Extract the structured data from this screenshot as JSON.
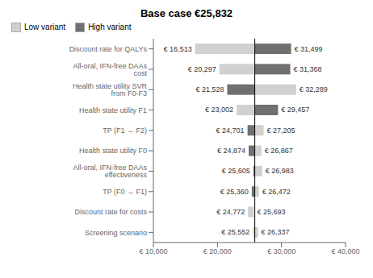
{
  "chart_data": {
    "type": "tornado",
    "title": "Base case €25,832",
    "orientation": "horizontal",
    "categories": [
      "Discount rate for QALYs",
      "All-oral, IFN-free DAAs cost",
      "Health state utility SVR from F0-F3",
      "Health state utility F1",
      "TP (F1 → F2)",
      "Health state utility F0",
      "All-oral, IFN-free DAAs effectiveness",
      "TP (F0 → F1)",
      "Discount rate for costs",
      "Screening scenario"
    ],
    "base_case": 25832,
    "low_values": [
      16513,
      20297,
      21528,
      23002,
      24701,
      24874,
      25605,
      25360,
      24772,
      25552
    ],
    "low_value_labels": [
      "€ 16,513",
      "€ 20,297",
      "€ 21,528",
      "€ 23,002",
      "€ 24,701",
      "€ 24,874",
      "€ 25,605",
      "€ 25,360",
      "€ 24,772",
      "€ 25,552"
    ],
    "high_values": [
      31499,
      31368,
      32289,
      29457,
      27205,
      26867,
      26983,
      26472,
      25693,
      26337
    ],
    "high_value_labels": [
      "€ 31,499",
      "€ 31,368",
      "€ 32,289",
      "€ 29,457",
      "€ 27,205",
      "€ 26,867",
      "€ 26,983",
      "€ 26,472",
      "€ 25,693",
      "€ 26,337"
    ],
    "left_colors": [
      "#d0d0d0",
      "#d0d0d0",
      "#707070",
      "#d0d0d0",
      "#707070",
      "#707070",
      "#707070",
      "#707070",
      "#d0d0d0",
      "#d0d0d0"
    ],
    "right_colors": [
      "#707070",
      "#707070",
      "#d0d0d0",
      "#707070",
      "#d0d0d0",
      "#d0d0d0",
      "#d0d0d0",
      "#d0d0d0",
      "#d0d0d0",
      "#d0d0d0"
    ],
    "series": [
      {
        "name": "Low variant",
        "color": "#d0d0d0"
      },
      {
        "name": "High variant",
        "color": "#707070"
      }
    ],
    "legend": "upper left",
    "data_labels": true,
    "xlim": [
      10000,
      40000
    ],
    "xticks": [
      {
        "value": 10000,
        "label": "€ 10,000"
      },
      {
        "value": 20000,
        "label": "€ 20,000"
      },
      {
        "value": 30000,
        "label": "€ 30,000"
      },
      {
        "value": 40000,
        "label": "€ 40,000"
      }
    ]
  }
}
